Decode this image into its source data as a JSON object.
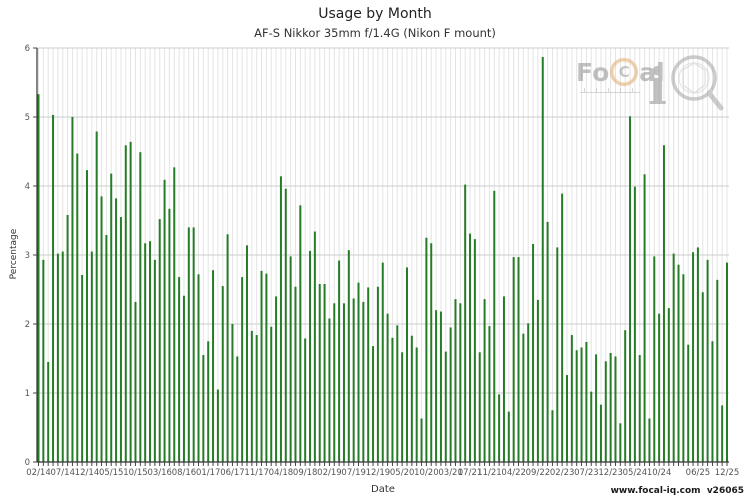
{
  "header": {
    "title": "Usage by Month",
    "subtitle": "AF-S Nikkor 35mm f/1.4G (Nikon F mount)"
  },
  "footer": {
    "website": "www.focal-iq.com",
    "version": "v26065"
  },
  "watermark": {
    "text_fo": "Fo",
    "text_c": "C",
    "text_al": "al",
    "text_i": "i"
  },
  "chart_data": {
    "type": "bar",
    "title": "Usage by Month",
    "subtitle": "AF-S Nikkor 35mm f/1.4G (Nikon F mount)",
    "xlabel": "Date",
    "ylabel": "Percentage",
    "ylim": [
      0,
      6
    ],
    "yticks": [
      0,
      1,
      2,
      3,
      4,
      5,
      6
    ],
    "grid": true,
    "legend": false,
    "bar_color": "#267c26",
    "grid_color_h": "#cccccc",
    "grid_color_v": "#e4e4e4",
    "axis_color": "#333333",
    "tick_label_color": "#555555",
    "categories": [
      "02/14",
      "03/14",
      "04/14",
      "05/14",
      "06/14",
      "07/14",
      "08/14",
      "09/14",
      "10/14",
      "11/14",
      "12/14",
      "01/15",
      "02/15",
      "03/15",
      "04/15",
      "05/15",
      "06/15",
      "07/15",
      "08/15",
      "09/15",
      "10/15",
      "11/15",
      "12/15",
      "01/16",
      "02/16",
      "03/16",
      "04/16",
      "05/16",
      "06/16",
      "07/16",
      "08/16",
      "09/16",
      "10/16",
      "11/16",
      "12/16",
      "01/17",
      "02/17",
      "03/17",
      "04/17",
      "05/17",
      "06/17",
      "07/17",
      "08/17",
      "09/17",
      "10/17",
      "11/17",
      "12/17",
      "01/18",
      "02/18",
      "03/18",
      "04/18",
      "05/18",
      "06/18",
      "07/18",
      "08/18",
      "09/18",
      "10/18",
      "11/18",
      "12/18",
      "01/19",
      "02/19",
      "03/19",
      "04/19",
      "05/19",
      "06/19",
      "07/19",
      "08/19",
      "09/19",
      "10/19",
      "11/19",
      "12/19",
      "01/20",
      "02/20",
      "03/20",
      "04/20",
      "05/20",
      "06/20",
      "07/20",
      "08/20",
      "09/20",
      "10/20",
      "11/20",
      "12/20",
      "01/21",
      "02/21",
      "03/21",
      "04/21",
      "05/21",
      "06/21",
      "07/21",
      "08/21",
      "09/21",
      "10/21",
      "11/21",
      "12/21",
      "01/22",
      "02/22",
      "03/22",
      "04/22",
      "05/22",
      "06/22",
      "07/22",
      "08/22",
      "09/22",
      "10/22",
      "11/22",
      "12/22",
      "01/23",
      "02/23",
      "03/23",
      "04/23",
      "05/23",
      "06/23",
      "07/23",
      "08/23",
      "09/23",
      "10/23",
      "11/23",
      "12/23",
      "01/24",
      "02/24",
      "03/24",
      "04/24",
      "05/24",
      "06/24",
      "07/24",
      "08/24",
      "09/24",
      "10/24",
      "11/24",
      "12/24",
      "01/25",
      "02/25",
      "03/25",
      "04/25",
      "05/25",
      "06/25",
      "07/25",
      "08/25",
      "09/25",
      "10/25",
      "11/25",
      "12/25"
    ],
    "values": [
      5.33,
      2.93,
      1.45,
      5.03,
      3.02,
      3.05,
      3.58,
      5.0,
      4.47,
      2.71,
      4.23,
      3.05,
      4.79,
      3.85,
      3.29,
      4.18,
      3.82,
      3.55,
      4.59,
      4.64,
      2.32,
      4.49,
      3.17,
      3.2,
      2.93,
      3.52,
      4.09,
      3.67,
      4.27,
      2.68,
      2.41,
      3.4,
      3.4,
      2.72,
      1.55,
      1.75,
      2.78,
      1.05,
      2.55,
      3.3,
      2.0,
      1.53,
      2.68,
      3.14,
      1.9,
      1.84,
      2.77,
      2.73,
      1.96,
      2.4,
      4.14,
      3.96,
      2.98,
      2.54,
      3.72,
      1.79,
      3.06,
      3.34,
      2.58,
      2.58,
      2.08,
      2.3,
      2.92,
      2.3,
      3.07,
      2.37,
      2.6,
      2.32,
      2.53,
      1.68,
      2.54,
      2.89,
      2.15,
      1.8,
      1.98,
      1.59,
      2.82,
      1.83,
      1.66,
      0.63,
      3.25,
      3.17,
      2.2,
      2.18,
      1.6,
      1.95,
      2.36,
      2.3,
      4.02,
      3.31,
      3.23,
      1.59,
      2.36,
      1.97,
      3.93,
      0.98,
      2.4,
      0.73,
      2.97,
      2.97,
      1.86,
      2.01,
      3.16,
      2.35,
      5.87,
      3.48,
      0.75,
      3.11,
      3.89,
      1.26,
      1.84,
      1.62,
      1.66,
      1.74,
      1.02,
      1.56,
      0.83,
      1.46,
      1.58,
      1.53,
      0.56,
      1.91,
      5.01,
      3.99,
      1.55,
      4.17,
      0.63,
      2.98,
      2.15,
      4.59,
      2.23,
      3.02,
      2.86,
      2.72,
      1.7,
      3.04,
      3.11,
      2.46,
      2.93,
      1.75,
      2.64,
      0.82,
      2.89
    ],
    "x_ticks": [
      {
        "i": 0,
        "label": "02/14"
      },
      {
        "i": 5,
        "label": "07/14"
      },
      {
        "i": 10,
        "label": "12/14"
      },
      {
        "i": 15,
        "label": "05/15"
      },
      {
        "i": 20,
        "label": "10/15"
      },
      {
        "i": 25,
        "label": "03/16"
      },
      {
        "i": 30,
        "label": "08/16"
      },
      {
        "i": 35,
        "label": "01/17"
      },
      {
        "i": 40,
        "label": "06/17"
      },
      {
        "i": 45,
        "label": "11/17"
      },
      {
        "i": 50,
        "label": "04/18"
      },
      {
        "i": 55,
        "label": "09/18"
      },
      {
        "i": 60,
        "label": "02/19"
      },
      {
        "i": 65,
        "label": "07/19"
      },
      {
        "i": 70,
        "label": "12/19"
      },
      {
        "i": 75,
        "label": "05/20"
      },
      {
        "i": 80,
        "label": "10/20"
      },
      {
        "i": 85,
        "label": "03/21"
      },
      {
        "i": 89,
        "label": "07/21"
      },
      {
        "i": 93,
        "label": "11/21"
      },
      {
        "i": 98,
        "label": "04/22"
      },
      {
        "i": 103,
        "label": "09/22"
      },
      {
        "i": 108,
        "label": "02/23"
      },
      {
        "i": 113,
        "label": "07/23"
      },
      {
        "i": 118,
        "label": "12/23"
      },
      {
        "i": 123,
        "label": "05/24"
      },
      {
        "i": 128,
        "label": "10/24"
      },
      {
        "i": 136,
        "label": "06/25"
      },
      {
        "i": 142,
        "label": "12/25"
      }
    ]
  }
}
